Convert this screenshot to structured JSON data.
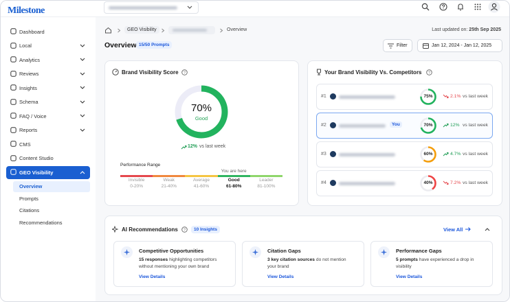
{
  "header": {
    "logo": "Milestone"
  },
  "sidebar": {
    "items": [
      {
        "label": "Dashboard"
      },
      {
        "label": "Local",
        "chevron": "down"
      },
      {
        "label": "Analytics",
        "chevron": "down"
      },
      {
        "label": "Reviews",
        "chevron": "down"
      },
      {
        "label": "Insights",
        "chevron": "down"
      },
      {
        "label": "Schema",
        "chevron": "down"
      },
      {
        "label": "FAQ / Voice",
        "chevron": "down"
      },
      {
        "label": "Reports",
        "chevron": "down"
      },
      {
        "label": "CMS"
      },
      {
        "label": "Content Studio"
      },
      {
        "label": "GEO Visibility",
        "chevron": "up",
        "active": true,
        "subitems": [
          {
            "label": "Overview",
            "active": true
          },
          {
            "label": "Prompts"
          },
          {
            "label": "Citations"
          },
          {
            "label": "Recommendations"
          }
        ]
      }
    ]
  },
  "breadcrumb": {
    "items": [
      "GEO Visibility",
      "Overview"
    ],
    "last_updated_label": "Last updated on:",
    "last_updated": "25th Sep 2025"
  },
  "page": {
    "title": "Overview",
    "badge": "15/50 Prompts",
    "filter": "Filter",
    "date_range": "Jan 12, 2024 - Jan 12, 2025"
  },
  "brand_score": {
    "title": "Brand Visibility Score",
    "score": {
      "value": 70,
      "label": "70%"
    },
    "rating": "Good",
    "change": "12%",
    "direction": "up",
    "change_note": "vs last week",
    "range_title": "Performance Range",
    "marker": "You are here",
    "ranges": [
      {
        "name": "Invisible",
        "range": "0-20%",
        "color": "#e5484d"
      },
      {
        "name": "Weak",
        "range": "21-40%",
        "color": "#f0883e"
      },
      {
        "name": "Average",
        "range": "41-60%",
        "color": "#f5c542"
      },
      {
        "name": "Good",
        "range": "61-80%",
        "color": "#2fb560",
        "current": true
      },
      {
        "name": "Leader",
        "range": "81-100%",
        "color": "#8fd66b"
      }
    ]
  },
  "competitors": {
    "title": "Your Brand Visibility Vs. Competitors",
    "rows": [
      {
        "rank": "#1",
        "score": {
          "value": 75,
          "label": "75%"
        },
        "color": "#22b35e",
        "change": "2.1%",
        "direction": "down",
        "note": "vs last week"
      },
      {
        "rank": "#2",
        "tag": "You",
        "highlight": true,
        "score": {
          "value": 70,
          "label": "70%"
        },
        "color": "#22b35e",
        "change": "12%",
        "direction": "up",
        "note": "vs last week"
      },
      {
        "rank": "#3",
        "score": {
          "value": 60,
          "label": "60%"
        },
        "color": "#f59e0b",
        "change": "4.7%",
        "direction": "up",
        "note": "vs last week"
      },
      {
        "rank": "#4",
        "score": {
          "value": 40,
          "label": "40%"
        },
        "color": "#ef4444",
        "change": "7.2%",
        "direction": "down",
        "note": "vs last week"
      }
    ]
  },
  "recommendations": {
    "title": "AI Recommendations",
    "badge": "10 Insights",
    "view_all": "View All",
    "cards": [
      {
        "title": "Competitive Opportunities",
        "highlight": "15 responses",
        "text": "highlighting competitors without mentioning your own brand",
        "link": "View Details"
      },
      {
        "title": "Citation Gaps",
        "highlight": "3 key citation sources",
        "text": "do not mention your brand",
        "link": "View Details"
      },
      {
        "title": "Performance Gaps",
        "highlight": "5 prompts",
        "text": "have experienced a drop in visibility",
        "link": "View Details"
      }
    ]
  }
}
